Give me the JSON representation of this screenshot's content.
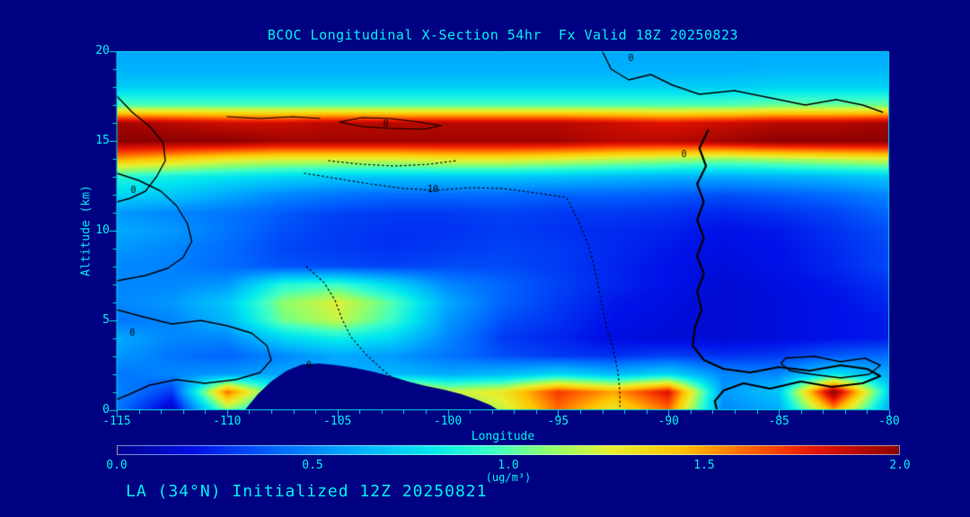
{
  "title": "BCOC Longitudinal X-Section 54hr  Fx Valid 18Z 20250823",
  "footer": "LA (34°N) Initialized 12Z 20250821",
  "colors": {
    "background": "#000083",
    "text": "#00EFEF",
    "axis": "#00E0E0",
    "contour": "#000000"
  },
  "chart_data": {
    "type": "heatmap",
    "title": "BCOC Longitudinal X-Section 54hr  Fx Valid 18Z 20250823",
    "xlabel": "Longitude",
    "ylabel": "Altitude (km)",
    "units": "(ug/m³)",
    "xlim": [
      -115,
      -80
    ],
    "ylim": [
      0,
      20
    ],
    "x_ticks": [
      -115,
      -110,
      -105,
      -100,
      -95,
      -90,
      -85,
      -80
    ],
    "y_ticks": [
      0,
      5,
      10,
      15,
      20
    ],
    "colorbar": {
      "min": 0.0,
      "max": 2.0,
      "ticks": [
        "0.0",
        "0.5",
        "1.0",
        "1.5",
        "2.0"
      ],
      "stops": [
        [
          0.0,
          "#000090"
        ],
        [
          0.1,
          "#0010E8"
        ],
        [
          0.2,
          "#0064FF"
        ],
        [
          0.3,
          "#00AAFF"
        ],
        [
          0.4,
          "#00E6F0"
        ],
        [
          0.48,
          "#3CFFC8"
        ],
        [
          0.55,
          "#8CFF6E"
        ],
        [
          0.63,
          "#E6F030"
        ],
        [
          0.72,
          "#FFC300"
        ],
        [
          0.81,
          "#FF6000"
        ],
        [
          0.89,
          "#E81400"
        ],
        [
          1.0,
          "#8C0000"
        ]
      ]
    },
    "grid": {
      "lon": [
        -115,
        -112.5,
        -110,
        -107.5,
        -105,
        -102.5,
        -100,
        -97.5,
        -95,
        -92.5,
        -90,
        -87.5,
        -85,
        -82.5,
        -80
      ],
      "alt": [
        0,
        1,
        2,
        3,
        4,
        5,
        6,
        7,
        8,
        9,
        10,
        11,
        12,
        13,
        14,
        15,
        16,
        17,
        18,
        19,
        20
      ],
      "values": [
        [
          0.45,
          0.1,
          1.1,
          0.6,
          0.8,
          1.0,
          1.0,
          1.2,
          1.6,
          1.3,
          1.6,
          0.5,
          0.6,
          1.5,
          0.6
        ],
        [
          0.5,
          0.3,
          1.6,
          0.8,
          1.0,
          1.5,
          1.2,
          1.3,
          1.7,
          1.5,
          1.8,
          0.55,
          0.7,
          2.0,
          0.75
        ],
        [
          0.45,
          0.5,
          0.55,
          0.6,
          0.6,
          0.65,
          0.6,
          0.65,
          0.75,
          0.65,
          0.75,
          0.5,
          0.5,
          0.8,
          0.6
        ],
        [
          0.55,
          0.45,
          0.4,
          0.5,
          0.6,
          0.55,
          0.45,
          0.35,
          0.3,
          0.28,
          0.32,
          0.28,
          0.3,
          0.38,
          0.42
        ],
        [
          0.6,
          0.5,
          0.5,
          0.75,
          0.85,
          0.75,
          0.5,
          0.3,
          0.25,
          0.18,
          0.16,
          0.15,
          0.17,
          0.2,
          0.22
        ],
        [
          0.45,
          0.5,
          0.65,
          1.05,
          1.2,
          0.95,
          0.55,
          0.35,
          0.28,
          0.2,
          0.17,
          0.15,
          0.17,
          0.2,
          0.22
        ],
        [
          0.5,
          0.55,
          0.7,
          1.1,
          1.25,
          1.0,
          0.6,
          0.4,
          0.3,
          0.22,
          0.18,
          0.15,
          0.17,
          0.2,
          0.25
        ],
        [
          0.5,
          0.5,
          0.55,
          0.9,
          0.95,
          0.75,
          0.5,
          0.4,
          0.32,
          0.25,
          0.2,
          0.15,
          0.18,
          0.22,
          0.28
        ],
        [
          0.5,
          0.48,
          0.42,
          0.36,
          0.34,
          0.32,
          0.34,
          0.34,
          0.3,
          0.25,
          0.2,
          0.17,
          0.2,
          0.25,
          0.33
        ],
        [
          0.55,
          0.5,
          0.42,
          0.33,
          0.3,
          0.28,
          0.3,
          0.32,
          0.3,
          0.26,
          0.22,
          0.18,
          0.2,
          0.26,
          0.33
        ],
        [
          0.6,
          0.55,
          0.45,
          0.35,
          0.3,
          0.28,
          0.28,
          0.3,
          0.28,
          0.26,
          0.24,
          0.2,
          0.22,
          0.28,
          0.35
        ],
        [
          0.55,
          0.5,
          0.45,
          0.38,
          0.32,
          0.3,
          0.3,
          0.32,
          0.3,
          0.3,
          0.28,
          0.25,
          0.28,
          0.32,
          0.4
        ],
        [
          0.75,
          0.7,
          0.6,
          0.5,
          0.45,
          0.42,
          0.42,
          0.42,
          0.4,
          0.4,
          0.38,
          0.35,
          0.38,
          0.42,
          0.5
        ],
        [
          0.9,
          0.85,
          0.8,
          0.75,
          0.7,
          0.7,
          0.7,
          0.7,
          0.68,
          0.65,
          0.62,
          0.6,
          0.62,
          0.65,
          0.7
        ],
        [
          1.5,
          1.4,
          1.3,
          1.25,
          1.25,
          1.25,
          1.3,
          1.3,
          1.25,
          1.2,
          1.15,
          1.1,
          1.15,
          1.2,
          1.25
        ],
        [
          2.0,
          2.0,
          2.0,
          1.95,
          1.95,
          1.95,
          1.95,
          1.95,
          1.95,
          1.9,
          1.9,
          1.95,
          2.0,
          2.0,
          2.0
        ],
        [
          1.95,
          1.9,
          1.85,
          1.85,
          1.9,
          1.9,
          1.9,
          1.9,
          1.9,
          1.85,
          1.8,
          1.85,
          1.9,
          1.9,
          1.95
        ],
        [
          1.0,
          1.0,
          1.0,
          1.0,
          1.0,
          1.0,
          1.0,
          1.0,
          1.0,
          1.0,
          1.0,
          1.0,
          1.05,
          1.05,
          1.05
        ],
        [
          0.72,
          0.72,
          0.72,
          0.72,
          0.72,
          0.72,
          0.72,
          0.72,
          0.72,
          0.72,
          0.72,
          0.72,
          0.74,
          0.74,
          0.74
        ],
        [
          0.62,
          0.62,
          0.62,
          0.62,
          0.62,
          0.62,
          0.62,
          0.62,
          0.62,
          0.62,
          0.62,
          0.62,
          0.64,
          0.64,
          0.64
        ],
        [
          0.6,
          0.6,
          0.6,
          0.6,
          0.6,
          0.6,
          0.6,
          0.6,
          0.6,
          0.6,
          0.6,
          0.6,
          0.6,
          0.6,
          0.6
        ]
      ]
    },
    "terrain": [
      [
        [
          -109.2,
          0
        ],
        [
          -108.6,
          0.9
        ],
        [
          -108.0,
          1.6
        ],
        [
          -107.3,
          2.2
        ],
        [
          -106.6,
          2.55
        ],
        [
          -105.8,
          2.6
        ],
        [
          -105.0,
          2.5
        ],
        [
          -104.2,
          2.35
        ],
        [
          -103.4,
          2.15
        ],
        [
          -102.6,
          1.9
        ],
        [
          -101.8,
          1.6
        ],
        [
          -101.0,
          1.35
        ],
        [
          -100.2,
          1.15
        ],
        [
          -99.4,
          0.9
        ],
        [
          -98.7,
          0.6
        ],
        [
          -98.1,
          0.3
        ],
        [
          -97.7,
          0
        ]
      ]
    ],
    "contours": [
      {
        "style": "solid",
        "width": 1.4,
        "points": [
          [
            -93.0,
            20
          ],
          [
            -92.6,
            19.0
          ],
          [
            -91.8,
            18.4
          ],
          [
            -90.8,
            18.7
          ],
          [
            -89.8,
            18.1
          ],
          [
            -88.6,
            17.6
          ],
          [
            -87.0,
            17.8
          ],
          [
            -85.4,
            17.4
          ],
          [
            -83.8,
            17.0
          ],
          [
            -82.4,
            17.3
          ],
          [
            -81.2,
            17.0
          ],
          [
            -80.3,
            16.6
          ]
        ]
      },
      {
        "style": "solid",
        "width": 2.2,
        "points": [
          [
            -88.2,
            15.6
          ],
          [
            -88.6,
            14.6
          ],
          [
            -88.3,
            13.6
          ],
          [
            -88.7,
            12.6
          ],
          [
            -88.4,
            11.6
          ],
          [
            -88.7,
            10.6
          ],
          [
            -88.4,
            9.6
          ],
          [
            -88.7,
            8.6
          ],
          [
            -88.4,
            7.6
          ],
          [
            -88.7,
            6.6
          ],
          [
            -88.5,
            5.6
          ],
          [
            -88.8,
            4.6
          ],
          [
            -88.9,
            3.6
          ],
          [
            -88.4,
            2.8
          ],
          [
            -87.5,
            2.3
          ],
          [
            -86.3,
            2.1
          ],
          [
            -85.0,
            2.4
          ],
          [
            -83.6,
            2.2
          ],
          [
            -82.2,
            2.5
          ],
          [
            -81.0,
            2.3
          ],
          [
            -80.4,
            1.9
          ],
          [
            -81.2,
            1.5
          ],
          [
            -82.6,
            1.3
          ],
          [
            -84.0,
            1.6
          ],
          [
            -85.4,
            1.2
          ],
          [
            -86.6,
            1.5
          ],
          [
            -87.5,
            1.1
          ],
          [
            -87.9,
            0.5
          ],
          [
            -87.8,
            0
          ]
        ]
      },
      {
        "style": "solid",
        "width": 1.2,
        "points": [
          [
            -104.9,
            16.05
          ],
          [
            -103.9,
            16.3
          ],
          [
            -102.6,
            16.25
          ],
          [
            -101.3,
            16.05
          ],
          [
            -100.3,
            15.85
          ],
          [
            -101.1,
            15.65
          ],
          [
            -102.6,
            15.7
          ],
          [
            -103.9,
            15.8
          ],
          [
            -104.9,
            16.05
          ]
        ]
      },
      {
        "style": "solid",
        "width": 1.2,
        "points": [
          [
            -110.0,
            16.35
          ],
          [
            -108.5,
            16.25
          ],
          [
            -107.0,
            16.35
          ],
          [
            -105.8,
            16.25
          ]
        ]
      },
      {
        "style": "solid",
        "width": 1.4,
        "points": [
          [
            -115,
            17.5
          ],
          [
            -114.3,
            16.6
          ],
          [
            -113.5,
            15.8
          ],
          [
            -112.9,
            14.9
          ],
          [
            -112.8,
            13.9
          ],
          [
            -113.2,
            13.0
          ],
          [
            -113.7,
            12.2
          ],
          [
            -114.4,
            11.8
          ],
          [
            -115,
            11.6
          ]
        ]
      },
      {
        "style": "solid",
        "width": 1.4,
        "points": [
          [
            -115,
            13.2
          ],
          [
            -114.0,
            12.8
          ],
          [
            -113.0,
            12.2
          ],
          [
            -112.3,
            11.4
          ],
          [
            -111.8,
            10.4
          ],
          [
            -111.6,
            9.4
          ],
          [
            -112.0,
            8.5
          ],
          [
            -112.7,
            7.9
          ],
          [
            -113.7,
            7.5
          ],
          [
            -114.6,
            7.3
          ],
          [
            -115,
            7.2
          ]
        ]
      },
      {
        "style": "solid",
        "width": 1.4,
        "points": [
          [
            -115,
            5.6
          ],
          [
            -113.8,
            5.2
          ],
          [
            -112.5,
            4.8
          ],
          [
            -111.2,
            5.0
          ],
          [
            -110.0,
            4.7
          ],
          [
            -108.9,
            4.3
          ],
          [
            -108.2,
            3.6
          ],
          [
            -108.0,
            2.8
          ],
          [
            -108.5,
            2.1
          ],
          [
            -109.6,
            1.7
          ],
          [
            -111.0,
            1.5
          ],
          [
            -112.3,
            1.7
          ],
          [
            -113.5,
            1.4
          ],
          [
            -114.4,
            0.9
          ],
          [
            -115,
            0.6
          ]
        ]
      },
      {
        "style": "solid",
        "width": 1.4,
        "points": [
          [
            -84.7,
            2.9
          ],
          [
            -83.4,
            3.0
          ],
          [
            -82.2,
            2.7
          ],
          [
            -81.1,
            2.9
          ],
          [
            -80.4,
            2.5
          ],
          [
            -80.9,
            2.0
          ],
          [
            -82.2,
            1.8
          ],
          [
            -83.5,
            2.0
          ],
          [
            -84.5,
            2.2
          ],
          [
            -84.9,
            2.6
          ],
          [
            -84.7,
            2.9
          ]
        ]
      },
      {
        "style": "dotted",
        "width": 1.2,
        "points": [
          [
            -106.5,
            13.2
          ],
          [
            -105.0,
            12.9
          ],
          [
            -103.5,
            12.6
          ],
          [
            -102.0,
            12.35
          ],
          [
            -100.5,
            12.25
          ],
          [
            -99.0,
            12.4
          ],
          [
            -97.5,
            12.35
          ],
          [
            -96.0,
            12.1
          ],
          [
            -94.6,
            11.85
          ]
        ]
      },
      {
        "style": "dotted",
        "width": 1.2,
        "points": [
          [
            -105.4,
            13.9
          ],
          [
            -103.9,
            13.7
          ],
          [
            -102.4,
            13.6
          ],
          [
            -100.9,
            13.7
          ],
          [
            -99.6,
            13.9
          ]
        ]
      },
      {
        "style": "dotted",
        "width": 1.2,
        "points": [
          [
            -106.4,
            8.0
          ],
          [
            -105.6,
            7.1
          ],
          [
            -105.1,
            6.1
          ],
          [
            -104.8,
            5.1
          ],
          [
            -104.4,
            4.1
          ],
          [
            -103.7,
            3.1
          ],
          [
            -103.0,
            2.3
          ],
          [
            -102.4,
            1.7
          ]
        ]
      },
      {
        "style": "dotted",
        "width": 1.2,
        "points": [
          [
            -94.6,
            11.8
          ],
          [
            -94.1,
            10.6
          ],
          [
            -93.7,
            9.4
          ],
          [
            -93.4,
            8.2
          ],
          [
            -93.2,
            7.0
          ],
          [
            -93.0,
            5.8
          ],
          [
            -92.8,
            4.6
          ],
          [
            -92.5,
            3.4
          ],
          [
            -92.3,
            2.2
          ],
          [
            -92.2,
            1.0
          ],
          [
            -92.2,
            0.2
          ]
        ]
      }
    ],
    "contour_labels": [
      {
        "text": "0",
        "lon": -91.7,
        "alt": 19.6
      },
      {
        "text": "0",
        "lon": -102.8,
        "alt": 15.95
      },
      {
        "text": "0",
        "lon": -89.3,
        "alt": 14.25
      },
      {
        "text": "-10",
        "lon": -100.8,
        "alt": 12.3
      },
      {
        "text": "0",
        "lon": -114.25,
        "alt": 12.25
      },
      {
        "text": "0",
        "lon": -114.3,
        "alt": 4.3
      },
      {
        "text": "0",
        "lon": -106.3,
        "alt": 2.5
      }
    ]
  }
}
